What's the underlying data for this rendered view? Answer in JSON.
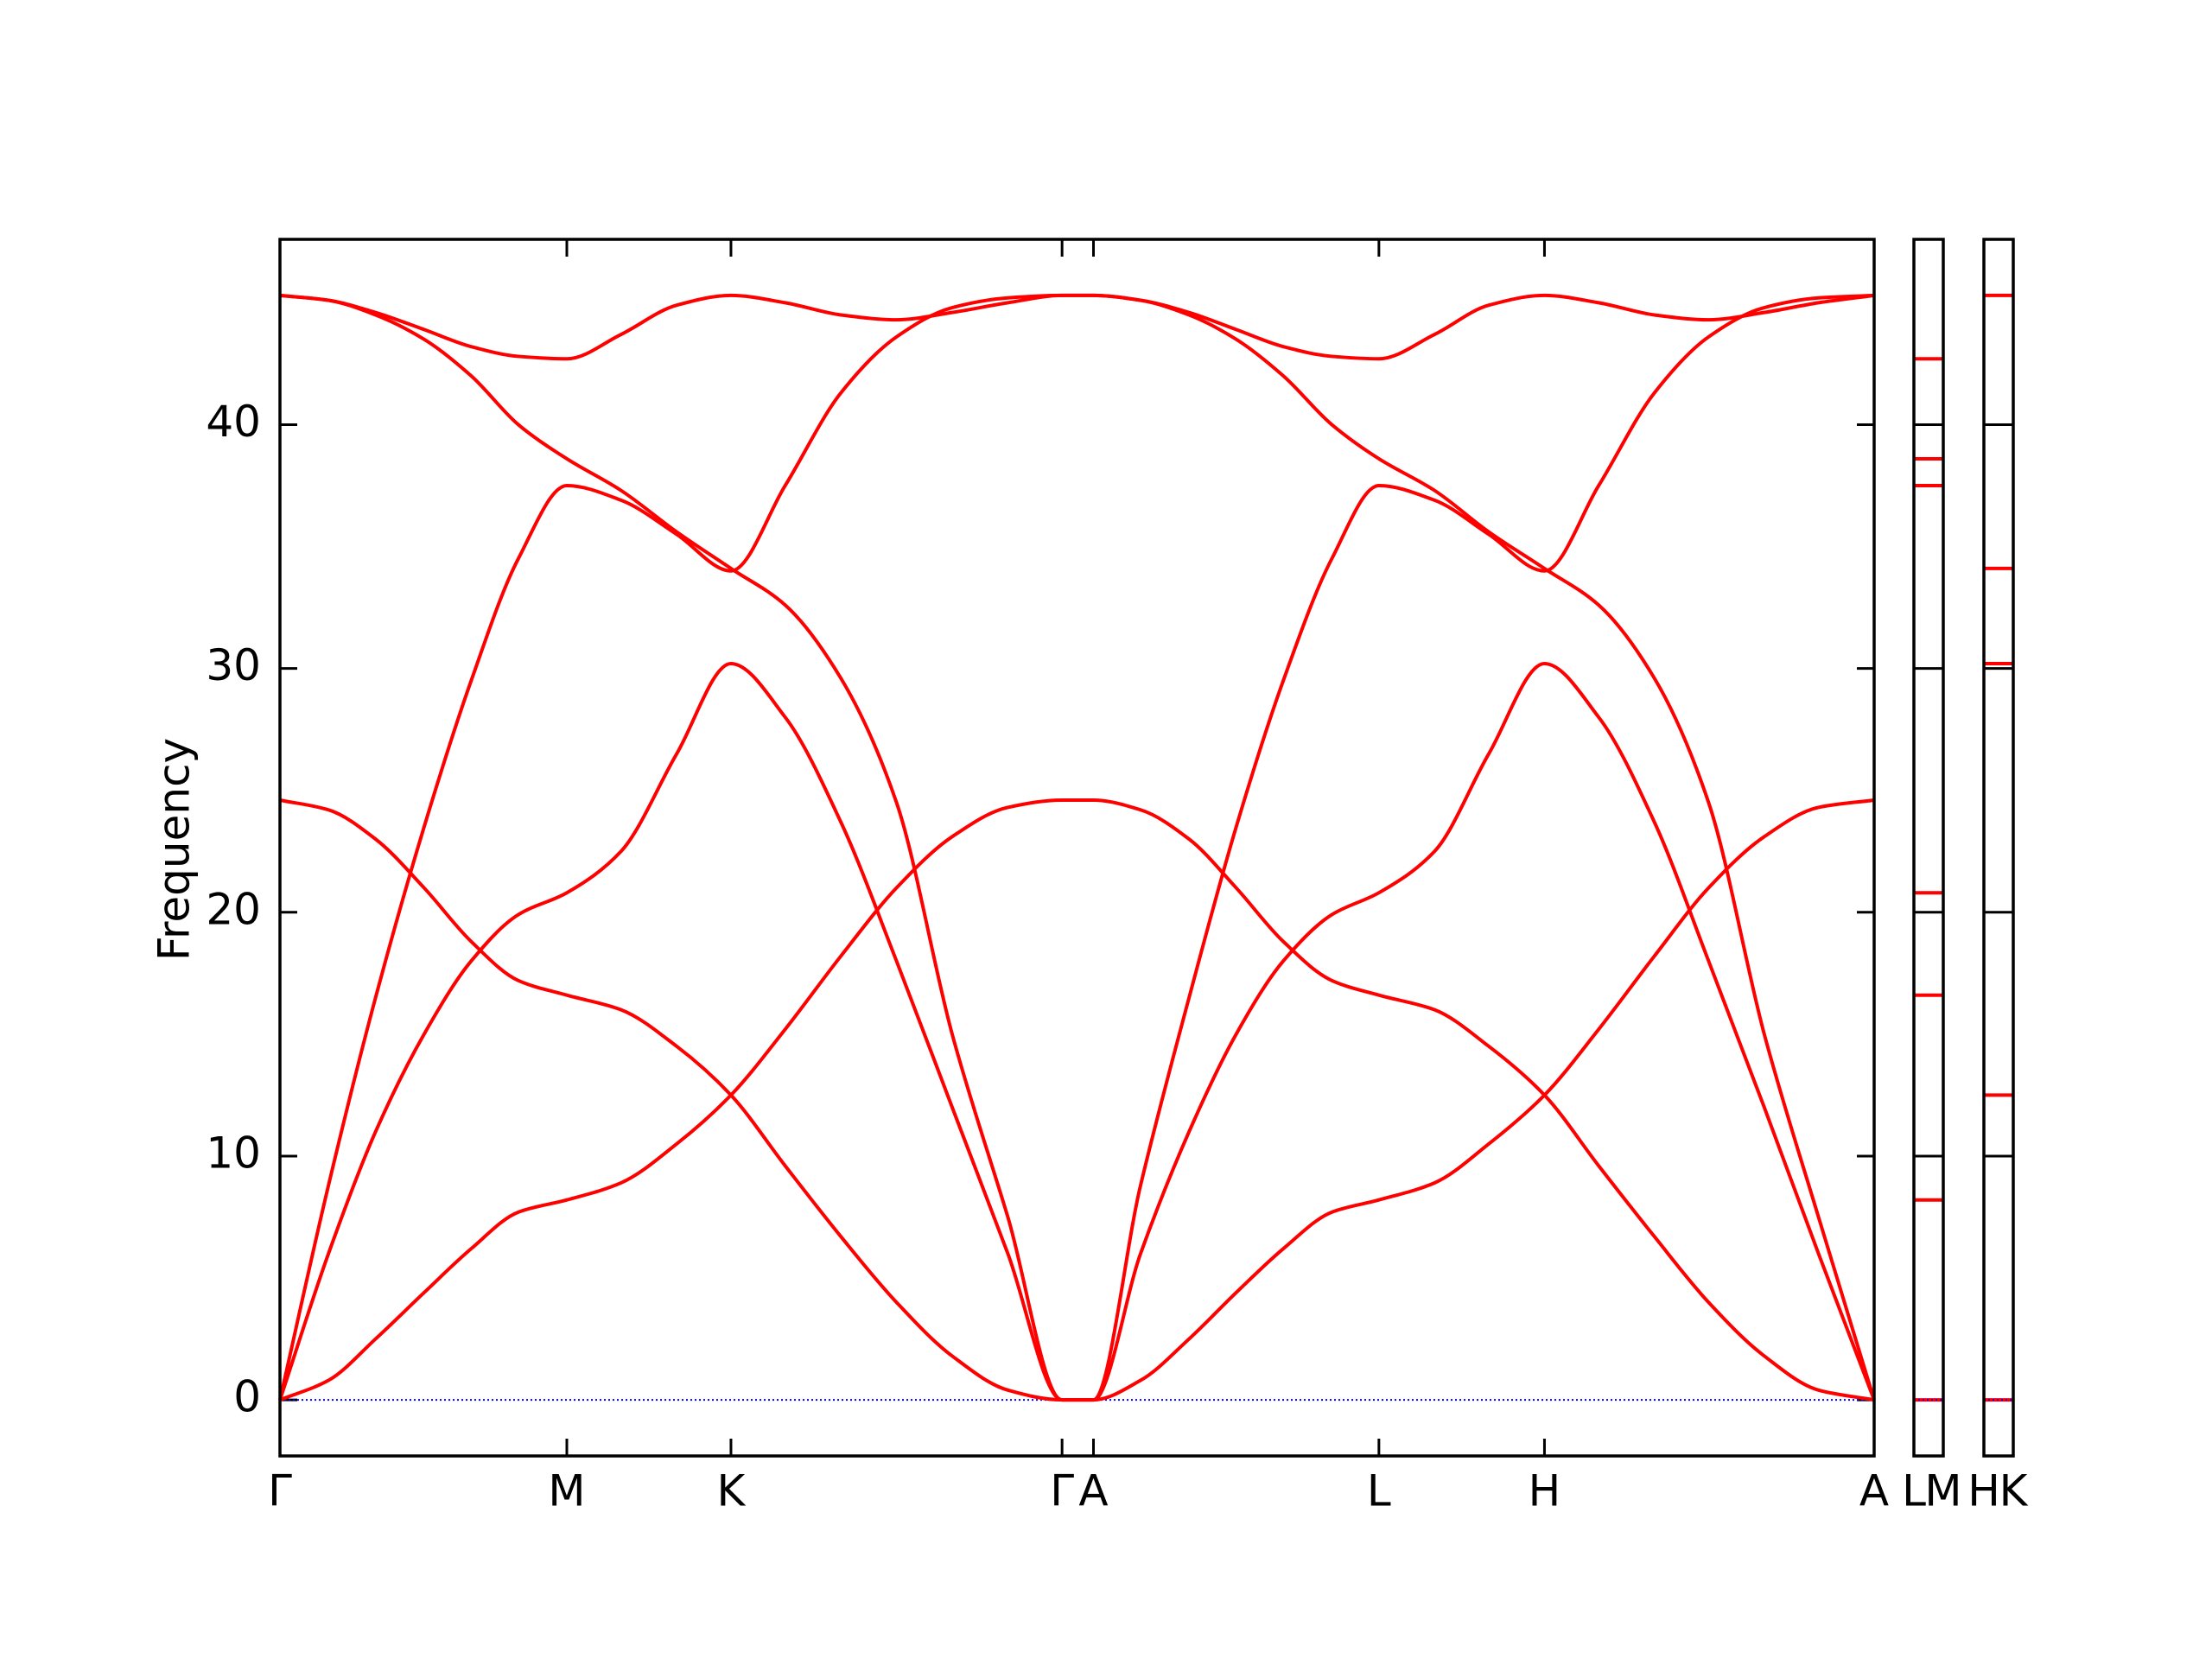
{
  "chart_data": [
    {
      "type": "line",
      "y_label": "Frequency",
      "x": [
        0,
        0.34,
        0.67,
        1.01,
        1.34,
        1.67,
        2.01,
        2.39,
        2.78,
        3.16,
        3.54,
        3.93,
        4.32,
        4.71,
        5.1,
        5.48,
        5.59,
        5.7,
        6.03,
        6.37,
        6.7,
        7.03,
        7.37,
        7.7,
        8.09,
        8.47,
        8.86,
        9.24,
        9.63,
        10.01,
        10.4,
        10.78,
        11.17
      ],
      "xlim": [
        0,
        11.17
      ],
      "xticks": [
        {
          "value": 0,
          "label": "Γ"
        },
        {
          "value": 2.01,
          "label": "M"
        },
        {
          "value": 3.16,
          "label": "K"
        },
        {
          "value": 5.48,
          "label": "Γ"
        },
        {
          "value": 5.7,
          "label": "A"
        },
        {
          "value": 7.7,
          "label": "L"
        },
        {
          "value": 8.86,
          "label": "H"
        },
        {
          "value": 11.17,
          "label": "A"
        }
      ],
      "ylim": [
        -2.3,
        47.6
      ],
      "yticks": [
        0,
        10,
        20,
        30,
        40
      ],
      "hline": 0,
      "hline_color": "#0000ff",
      "series": [
        {
          "color": "#ff0000",
          "values": [
            0,
            0.8,
            2.5,
            4.4,
            6.2,
            7.7,
            8.2,
            8.9,
            10.5,
            12.5,
            15.2,
            18.2,
            21.0,
            23.1,
            24.3,
            24.6,
            24.6,
            24.6,
            24.2,
            23.0,
            21.0,
            18.8,
            17.2,
            16.6,
            16.0,
            14.5,
            12.5,
            9.6,
            6.7,
            4.0,
            1.8,
            0.4,
            0
          ]
        },
        {
          "color": "#ff0000",
          "values": [
            24.6,
            24.2,
            23.0,
            21.0,
            18.8,
            17.2,
            16.6,
            16.0,
            14.5,
            12.5,
            9.6,
            6.7,
            4.0,
            1.8,
            0.4,
            0,
            0,
            0,
            0.8,
            2.5,
            4.4,
            6.2,
            7.7,
            8.2,
            8.9,
            10.5,
            12.5,
            15.2,
            18.2,
            21.0,
            23.1,
            24.3,
            24.6
          ]
        },
        {
          "color": "#ff0000",
          "values": [
            0,
            6.0,
            11.0,
            15.0,
            18.0,
            19.9,
            20.8,
            22.5,
            26.5,
            30.2,
            28.0,
            23.7,
            18.0,
            12.0,
            6.0,
            0,
            0,
            0,
            6.0,
            11.0,
            15.0,
            18.0,
            19.9,
            20.8,
            22.5,
            26.5,
            30.2,
            28.0,
            23.7,
            18.0,
            12.0,
            6.0,
            0
          ]
        },
        {
          "color": "#ff0000",
          "values": [
            45.3,
            45.1,
            44.5,
            43.5,
            42.0,
            40.0,
            38.6,
            37.3,
            35.6,
            34.1,
            32.6,
            29.6,
            24.5,
            15.0,
            7.5,
            0,
            0,
            0,
            8.8,
            16.5,
            23.5,
            29.5,
            34.5,
            37.5,
            36.9,
            35.5,
            34.0,
            37.5,
            41.3,
            43.6,
            44.8,
            45.2,
            45.3
          ]
        },
        {
          "color": "#ff0000",
          "values": [
            0,
            8.8,
            16.5,
            23.5,
            29.5,
            34.5,
            37.5,
            36.9,
            35.5,
            34.0,
            37.5,
            41.3,
            43.6,
            44.8,
            45.2,
            45.3,
            45.3,
            45.3,
            45.1,
            44.6,
            43.9,
            43.2,
            42.8,
            42.7,
            43.7,
            44.9,
            45.3,
            45.0,
            44.5,
            44.3,
            44.6,
            45.0,
            45.3
          ]
        },
        {
          "color": "#ff0000",
          "values": [
            45.3,
            45.1,
            44.6,
            43.9,
            43.2,
            42.8,
            42.7,
            43.7,
            44.9,
            45.3,
            45.0,
            44.5,
            44.3,
            44.6,
            45.0,
            45.3,
            45.3,
            45.3,
            45.1,
            44.5,
            43.5,
            42.0,
            40.0,
            38.6,
            37.3,
            35.6,
            34.1,
            32.6,
            29.6,
            24.5,
            15.0,
            7.5,
            0
          ]
        }
      ]
    },
    {
      "type": "levels",
      "xlim": [
        0,
        1
      ],
      "xticks": [
        {
          "value": 0,
          "label": "L"
        },
        {
          "value": 1,
          "label": "M"
        }
      ],
      "ylim": [
        -2.3,
        47.6
      ],
      "yticks": [
        0,
        10,
        20,
        30,
        40
      ],
      "hline": 0,
      "hline_color": "#0000ff",
      "color": "#ff0000",
      "values": [
        0,
        8.2,
        16.6,
        20.8,
        37.5,
        38.6,
        42.7
      ]
    },
    {
      "type": "levels",
      "xlim": [
        0,
        1
      ],
      "xticks": [
        {
          "value": 0,
          "label": "H"
        },
        {
          "value": 1,
          "label": "K"
        }
      ],
      "ylim": [
        -2.3,
        47.6
      ],
      "yticks": [
        0,
        10,
        20,
        30,
        40
      ],
      "hline": 0,
      "hline_color": "#0000ff",
      "color": "#ff0000",
      "values": [
        0,
        12.5,
        30.2,
        34.1,
        45.3
      ]
    }
  ]
}
